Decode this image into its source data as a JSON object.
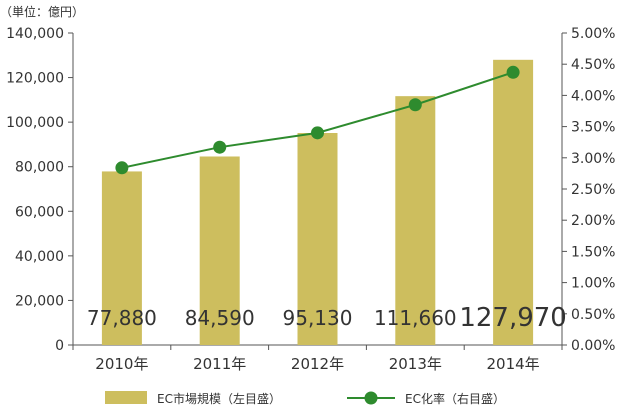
{
  "chart_data": {
    "type": "bar+line",
    "unit_label": "（単位：億円）",
    "categories": [
      "2010年",
      "2011年",
      "2012年",
      "2013年",
      "2014年"
    ],
    "series": [
      {
        "name": "EC市場規模（左目盛）",
        "type": "bar",
        "axis": "left",
        "values": [
          77880,
          84590,
          95130,
          111660,
          127970
        ],
        "value_labels": [
          "77,880",
          "84,590",
          "95,130",
          "111,660",
          "127,970"
        ],
        "color": "#cdbe5e"
      },
      {
        "name": "EC化率（右目盛）",
        "type": "line",
        "axis": "right",
        "values": [
          2.84,
          3.17,
          3.4,
          3.85,
          4.37
        ],
        "color": "#2e8b2e"
      }
    ],
    "y_left": {
      "min": 0,
      "max": 140000,
      "ticks": [
        "0",
        "20,000",
        "40,000",
        "60,000",
        "80,000",
        "100,000",
        "120,000",
        "140,000"
      ]
    },
    "y_right": {
      "min": 0,
      "max": 5,
      "ticks": [
        "0.00%",
        "0.50%",
        "1.00%",
        "1.50%",
        "2.00%",
        "2.50%",
        "3.00%",
        "3.50%",
        "4.00%",
        "4.50%",
        "5.00%"
      ]
    },
    "legend_position": "bottom",
    "grid": false
  }
}
